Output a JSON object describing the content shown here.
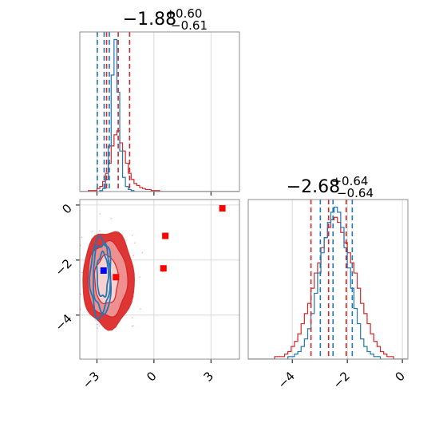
{
  "chart_data": {
    "type": "corner",
    "panels": {
      "hist_x": {
        "type": "histogram",
        "title": {
          "median": "−1.88",
          "plus": "+0.60",
          "minus": "−0.61"
        },
        "xlim": [
          -3.9,
          4.5
        ],
        "xgrid": [
          -3,
          0,
          3
        ],
        "series": [
          {
            "name": "",
            "color": "#d62728",
            "bin_start": -3.9,
            "bin_width": 0.15,
            "counts": [
              0,
              0,
              0,
              1,
              1,
              1,
              3,
              5,
              10,
              18,
              28,
              45,
              56,
              60,
              48,
              40,
              28,
              18,
              12,
              8,
              6,
              4,
              3,
              2,
              2,
              1,
              1,
              1,
              0,
              0,
              0,
              0,
              0,
              0,
              0,
              0,
              0,
              0,
              0,
              0,
              0,
              0,
              0,
              0,
              0,
              0,
              0,
              0,
              0,
              0,
              0,
              0,
              0,
              0,
              0,
              0
            ],
            "quantiles": [
              -2.49,
              -1.88,
              -1.28
            ]
          },
          {
            "name": "",
            "color": "#1f77b4",
            "bin_start": -3.9,
            "bin_width": 0.15,
            "counts": [
              0,
              0,
              0,
              0,
              0,
              0,
              0,
              1,
              3,
              12,
              45,
              115,
              150,
              98,
              40,
              14,
              5,
              2,
              1,
              0,
              0,
              0,
              0,
              0,
              0,
              0,
              0,
              0,
              0,
              0,
              0,
              0,
              0,
              0,
              0,
              0,
              0,
              0,
              0,
              0,
              0,
              0,
              0,
              0,
              0,
              0,
              0,
              0,
              0,
              0,
              0,
              0,
              0,
              0,
              0,
              0
            ],
            "quantiles": [
              -2.98,
              -2.62,
              -2.35
            ]
          }
        ]
      },
      "hist_y": {
        "type": "histogram",
        "title": {
          "median": "−2.68",
          "plus": "+0.64",
          "minus": "−0.64"
        },
        "xlim": [
          -5.6,
          0.2
        ],
        "xticks": [
          -4,
          -2,
          0
        ],
        "xtick_labels": [
          "−4",
          "−2",
          "0"
        ],
        "series": [
          {
            "name": "",
            "color": "#d62728",
            "bin_start": -5.6,
            "bin_width": 0.12,
            "counts": [
              0,
              0,
              0,
              0,
              0,
              0,
              0,
              0,
              1,
              1,
              1,
              2,
              3,
              5,
              7,
              10,
              14,
              18,
              22,
              28,
              34,
              38,
              44,
              48,
              52,
              55,
              56,
              54,
              50,
              46,
              42,
              38,
              34,
              28,
              22,
              18,
              14,
              10,
              7,
              5,
              3,
              2,
              1,
              1,
              0,
              0,
              0,
              0
            ],
            "quantiles": [
              -3.32,
              -2.68,
              -2.04
            ]
          },
          {
            "name": "",
            "color": "#1f77b4",
            "bin_start": -5.6,
            "bin_width": 0.12,
            "counts": [
              0,
              0,
              0,
              0,
              0,
              0,
              0,
              0,
              0,
              0,
              0,
              0,
              1,
              1,
              2,
              3,
              5,
              8,
              12,
              18,
              26,
              34,
              42,
              48,
              54,
              58,
              60,
              58,
              52,
              44,
              36,
              28,
              20,
              14,
              8,
              5,
              3,
              2,
              1,
              1,
              0,
              0,
              0,
              0,
              0,
              0,
              0,
              0
            ],
            "quantiles": [
              -2.98,
              -2.52,
              -1.82
            ]
          }
        ]
      },
      "scatter": {
        "type": "contour",
        "xlim": [
          -3.9,
          4.5
        ],
        "ylim": [
          -5.6,
          0.2
        ],
        "xgrid": [
          -3,
          0,
          3
        ],
        "yticks": [
          -4,
          -2,
          0
        ],
        "ytick_labels": [
          "−4",
          "−2",
          "0"
        ],
        "xticks": [
          -3,
          0,
          3
        ],
        "xtick_labels": [
          "−3",
          "0",
          "3"
        ],
        "red_contours": [
          {
            "cx": -2.5,
            "cy": -2.72,
            "rx": 0.62,
            "ry": 0.88
          },
          {
            "cx": -2.45,
            "cy": -2.7,
            "rx": 1.05,
            "ry": 1.35
          },
          {
            "cx": -2.4,
            "cy": -2.7,
            "rx": 1.35,
            "ry": 1.75
          }
        ],
        "blue_contours": [
          {
            "cx": -2.7,
            "cy": -2.55,
            "rx": 0.3,
            "ry": 0.8
          },
          {
            "cx": -2.75,
            "cy": -2.6,
            "rx": 0.45,
            "ry": 1.2
          },
          {
            "cx": -2.8,
            "cy": -2.65,
            "rx": 0.55,
            "ry": 1.45
          }
        ],
        "red_markers": [
          [
            3.6,
            -0.12
          ],
          [
            0.6,
            -1.12
          ],
          [
            0.5,
            -2.3
          ],
          [
            -2.0,
            -2.62
          ]
        ],
        "blue_markers": [
          [
            -2.65,
            -2.38
          ]
        ],
        "colors": {
          "red": "#d62728",
          "blue": "#1f77b4",
          "blue_marker": "#0000ff",
          "red_marker": "#ff0000"
        }
      }
    }
  }
}
